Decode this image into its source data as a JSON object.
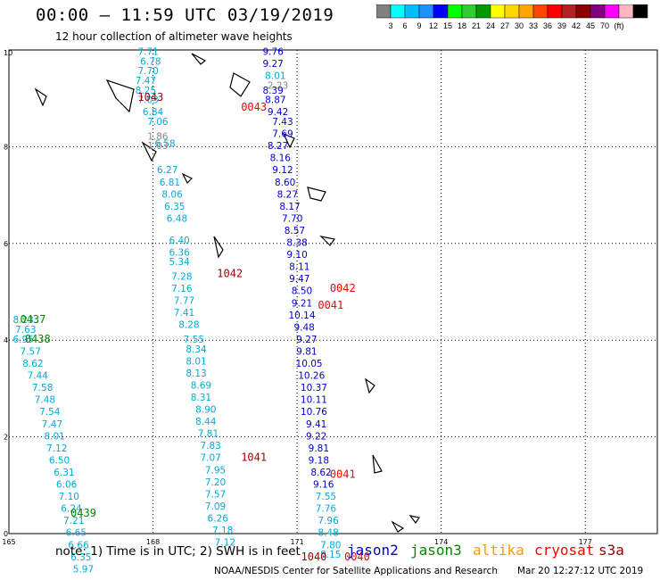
{
  "header": {
    "title": "00:00 – 11:59 UTC 03/19/2019",
    "subtitle": "12 hour collection of altimeter wave heights"
  },
  "color_scale": {
    "colors": [
      "#808080",
      "#00ffff",
      "#00bfff",
      "#1e90ff",
      "#0000ff",
      "#00ff00",
      "#32cd32",
      "#009900",
      "#ffff00",
      "#ffd700",
      "#ffa500",
      "#ff4500",
      "#ff0000",
      "#b22222",
      "#8b0000",
      "#800080",
      "#ff00ff",
      "#ffb6c1",
      "#000000"
    ],
    "labels": [
      "3",
      "6",
      "9",
      "12",
      "15",
      "18",
      "21",
      "24",
      "27",
      "30",
      "33",
      "36",
      "39",
      "42",
      "45",
      "70",
      "(ft)"
    ]
  },
  "footer": {
    "note": "note:  1) Time is in UTC;  2) SWH is in feet",
    "credit": "NOAA/NESDIS Center for Satellite Applications and Research",
    "generated": "Mar 20 12:27:12 UTC 2019"
  },
  "satellites": [
    {
      "name": "jason2",
      "color": "#0000cc"
    },
    {
      "name": "jason3",
      "color": "#008800"
    },
    {
      "name": "altika",
      "color": "#ff9900"
    },
    {
      "name": "cryosat",
      "color": "#ff0000"
    },
    {
      "name": "s3a",
      "color": "#990000"
    }
  ],
  "chart_data": {
    "type": "scatter",
    "title": "12 hour collection of altimeter wave heights",
    "x_ticks": [
      "165",
      "168",
      "171",
      "174",
      "177"
    ],
    "y_ticks": [
      "0",
      "2",
      "4",
      "6",
      "8",
      "10"
    ],
    "xlim": [
      165,
      178.5
    ],
    "ylim": [
      0,
      10
    ],
    "grid": true,
    "units": "ft",
    "tracks": [
      {
        "name": "track-1",
        "color": "#00aadd",
        "points": [
          {
            "x": 167.9,
            "y": 9.9,
            "v": "7.71"
          },
          {
            "x": 167.95,
            "y": 9.7,
            "v": "6.78"
          },
          {
            "x": 167.9,
            "y": 9.5,
            "v": "7.70"
          },
          {
            "x": 167.85,
            "y": 9.3,
            "v": "7.47"
          },
          {
            "x": 167.85,
            "y": 9.1,
            "v": "8.25"
          },
          {
            "x": 167.9,
            "y": 8.9,
            "v": "7.03"
          },
          {
            "x": 168.0,
            "y": 8.65,
            "v": "6.84"
          },
          {
            "x": 168.1,
            "y": 8.45,
            "v": "7.06"
          },
          {
            "x": 168.25,
            "y": 8.0,
            "v": "6.58"
          },
          {
            "x": 168.3,
            "y": 7.45,
            "v": "6.27"
          },
          {
            "x": 168.35,
            "y": 7.2,
            "v": "6.81"
          },
          {
            "x": 168.4,
            "y": 6.95,
            "v": "8.06"
          },
          {
            "x": 168.45,
            "y": 6.7,
            "v": "6.35"
          },
          {
            "x": 168.5,
            "y": 6.45,
            "v": "6.48"
          },
          {
            "x": 168.55,
            "y": 6.0,
            "v": "6.40"
          },
          {
            "x": 168.55,
            "y": 5.75,
            "v": "6.36"
          },
          {
            "x": 168.55,
            "y": 5.55,
            "v": "5.34"
          },
          {
            "x": 168.6,
            "y": 5.25,
            "v": "7.28"
          },
          {
            "x": 168.6,
            "y": 5.0,
            "v": "7.16"
          },
          {
            "x": 168.65,
            "y": 4.75,
            "v": "7.77"
          },
          {
            "x": 168.65,
            "y": 4.5,
            "v": "7.41"
          },
          {
            "x": 168.75,
            "y": 4.25,
            "v": "8.28"
          },
          {
            "x": 168.85,
            "y": 3.95,
            "v": "7.55"
          },
          {
            "x": 168.9,
            "y": 3.75,
            "v": "8.34"
          },
          {
            "x": 168.9,
            "y": 3.5,
            "v": "8.01"
          },
          {
            "x": 168.9,
            "y": 3.25,
            "v": "8.13"
          },
          {
            "x": 169.0,
            "y": 3.0,
            "v": "8.69"
          },
          {
            "x": 169.0,
            "y": 2.75,
            "v": "8.31"
          },
          {
            "x": 169.1,
            "y": 2.5,
            "v": "8.90"
          },
          {
            "x": 169.1,
            "y": 2.25,
            "v": "8.44"
          },
          {
            "x": 169.15,
            "y": 2.0,
            "v": "7.81"
          },
          {
            "x": 169.2,
            "y": 1.75,
            "v": "7.83"
          },
          {
            "x": 169.2,
            "y": 1.5,
            "v": "7.07"
          },
          {
            "x": 169.3,
            "y": 1.25,
            "v": "7.95"
          },
          {
            "x": 169.3,
            "y": 1.0,
            "v": "7.20"
          },
          {
            "x": 169.3,
            "y": 0.75,
            "v": "7.57"
          },
          {
            "x": 169.3,
            "y": 0.5,
            "v": "7.09"
          },
          {
            "x": 169.35,
            "y": 0.25,
            "v": "6.26"
          },
          {
            "x": 169.45,
            "y": 0.0,
            "v": "7.18"
          },
          {
            "x": 169.5,
            "y": -0.25,
            "v": "7.12"
          }
        ]
      },
      {
        "name": "track-2",
        "color": "#0000cc",
        "points": [
          {
            "x": 170.5,
            "y": 9.9,
            "v": "9.76"
          },
          {
            "x": 170.5,
            "y": 9.65,
            "v": "9.27"
          },
          {
            "x": 170.5,
            "y": 9.1,
            "v": "8.39"
          },
          {
            "x": 170.55,
            "y": 8.9,
            "v": "8.87"
          },
          {
            "x": 170.6,
            "y": 8.65,
            "v": "9.42"
          },
          {
            "x": 170.7,
            "y": 8.45,
            "v": "7.43"
          },
          {
            "x": 170.7,
            "y": 8.2,
            "v": "7.69"
          },
          {
            "x": 170.6,
            "y": 7.95,
            "v": "8.27"
          },
          {
            "x": 170.65,
            "y": 7.7,
            "v": "8.16"
          },
          {
            "x": 170.7,
            "y": 7.45,
            "v": "9.12"
          },
          {
            "x": 170.75,
            "y": 7.2,
            "v": "8.60"
          },
          {
            "x": 170.8,
            "y": 6.95,
            "v": "8.27"
          },
          {
            "x": 170.85,
            "y": 6.7,
            "v": "8.17"
          },
          {
            "x": 170.9,
            "y": 6.45,
            "v": "7.70"
          },
          {
            "x": 170.95,
            "y": 6.2,
            "v": "8.57"
          },
          {
            "x": 171.0,
            "y": 5.95,
            "v": "8.38"
          },
          {
            "x": 171.0,
            "y": 5.7,
            "v": "9.10"
          },
          {
            "x": 171.05,
            "y": 5.45,
            "v": "8.11"
          },
          {
            "x": 171.05,
            "y": 5.2,
            "v": "9.47"
          },
          {
            "x": 171.1,
            "y": 4.95,
            "v": "8.50"
          },
          {
            "x": 171.1,
            "y": 4.7,
            "v": "9.21"
          },
          {
            "x": 171.1,
            "y": 4.45,
            "v": "10.14"
          },
          {
            "x": 171.15,
            "y": 4.2,
            "v": "9.48"
          },
          {
            "x": 171.2,
            "y": 3.95,
            "v": "9.27"
          },
          {
            "x": 171.2,
            "y": 3.7,
            "v": "9.81"
          },
          {
            "x": 171.25,
            "y": 3.45,
            "v": "10.05"
          },
          {
            "x": 171.3,
            "y": 3.2,
            "v": "10.26"
          },
          {
            "x": 171.35,
            "y": 2.95,
            "v": "10.37"
          },
          {
            "x": 171.35,
            "y": 2.7,
            "v": "10.11"
          },
          {
            "x": 171.35,
            "y": 2.45,
            "v": "10.76"
          },
          {
            "x": 171.4,
            "y": 2.2,
            "v": "9.41"
          },
          {
            "x": 171.4,
            "y": 1.95,
            "v": "9.22"
          },
          {
            "x": 171.45,
            "y": 1.7,
            "v": "9.81"
          },
          {
            "x": 171.45,
            "y": 1.45,
            "v": "9.18"
          },
          {
            "x": 171.5,
            "y": 1.2,
            "v": "8.62"
          },
          {
            "x": 171.55,
            "y": 0.95,
            "v": "9.16"
          }
        ]
      },
      {
        "name": "track-3",
        "color": "#00aadd",
        "points": [
          {
            "x": 170.55,
            "y": 9.4,
            "v": "8.01"
          },
          {
            "x": 171.6,
            "y": 0.7,
            "v": "7.55"
          },
          {
            "x": 171.6,
            "y": 0.45,
            "v": "7.76"
          },
          {
            "x": 171.65,
            "y": 0.2,
            "v": "7.96"
          },
          {
            "x": 171.65,
            "y": -0.05,
            "v": "8.48"
          },
          {
            "x": 171.7,
            "y": -0.3,
            "v": "7.80"
          },
          {
            "x": 171.7,
            "y": -0.5,
            "v": "8.15"
          }
        ]
      },
      {
        "name": "track-4",
        "color": "#00aadd",
        "points": [
          {
            "x": 165.3,
            "y": 4.35,
            "v": "8.23"
          },
          {
            "x": 165.35,
            "y": 4.15,
            "v": "7.63"
          },
          {
            "x": 165.3,
            "y": 3.95,
            "v": "6.95"
          },
          {
            "x": 165.45,
            "y": 3.7,
            "v": "7.57"
          },
          {
            "x": 165.5,
            "y": 3.45,
            "v": "8.62"
          },
          {
            "x": 165.6,
            "y": 3.2,
            "v": "7.44"
          },
          {
            "x": 165.7,
            "y": 2.95,
            "v": "7.58"
          },
          {
            "x": 165.75,
            "y": 2.7,
            "v": "7.48"
          },
          {
            "x": 165.85,
            "y": 2.45,
            "v": "7.54"
          },
          {
            "x": 165.9,
            "y": 2.2,
            "v": "7.47"
          },
          {
            "x": 165.95,
            "y": 1.95,
            "v": "8.01"
          },
          {
            "x": 166.0,
            "y": 1.7,
            "v": "7.12"
          },
          {
            "x": 166.05,
            "y": 1.45,
            "v": "6.50"
          },
          {
            "x": 166.15,
            "y": 1.2,
            "v": "6.31"
          },
          {
            "x": 166.2,
            "y": 0.95,
            "v": "6.06"
          },
          {
            "x": 166.25,
            "y": 0.7,
            "v": "7.10"
          },
          {
            "x": 166.3,
            "y": 0.45,
            "v": "6.24"
          },
          {
            "x": 166.35,
            "y": 0.2,
            "v": "7.21"
          },
          {
            "x": 166.4,
            "y": -0.05,
            "v": "6.65"
          },
          {
            "x": 166.45,
            "y": -0.3,
            "v": "6.66"
          },
          {
            "x": 166.5,
            "y": -0.55,
            "v": "6.35"
          },
          {
            "x": 166.55,
            "y": -0.8,
            "v": "5.97"
          }
        ]
      },
      {
        "name": "track-5",
        "color": "#888888",
        "points": [
          {
            "x": 170.6,
            "y": 9.2,
            "v": "2.23"
          },
          {
            "x": 168.1,
            "y": 8.15,
            "v": "1.86"
          },
          {
            "x": 168.1,
            "y": 7.95,
            "v": "1.03"
          }
        ]
      }
    ],
    "time_labels": [
      {
        "x": 167.95,
        "y": 8.95,
        "v": "1043",
        "color": "#990000"
      },
      {
        "x": 170.1,
        "y": 8.75,
        "v": "0043",
        "color": "#ff0000"
      },
      {
        "x": 169.6,
        "y": 5.3,
        "v": "1042",
        "color": "#990000"
      },
      {
        "x": 171.95,
        "y": 5.0,
        "v": "0042",
        "color": "#ff0000"
      },
      {
        "x": 171.7,
        "y": 4.65,
        "v": "0041",
        "color": "#ff0000"
      },
      {
        "x": 170.1,
        "y": 1.5,
        "v": "1041",
        "color": "#990000"
      },
      {
        "x": 171.95,
        "y": 1.15,
        "v": "0041",
        "color": "#ff0000"
      },
      {
        "x": 171.35,
        "y": -0.55,
        "v": "1040",
        "color": "#990000"
      },
      {
        "x": 172.25,
        "y": -0.55,
        "v": "0040",
        "color": "#ff0000"
      },
      {
        "x": 165.5,
        "y": 4.35,
        "v": "0437",
        "color": "#008800"
      },
      {
        "x": 165.6,
        "y": 3.95,
        "v": "0438",
        "color": "#008800"
      },
      {
        "x": 166.55,
        "y": 0.35,
        "v": "0439",
        "color": "#008800"
      }
    ]
  }
}
